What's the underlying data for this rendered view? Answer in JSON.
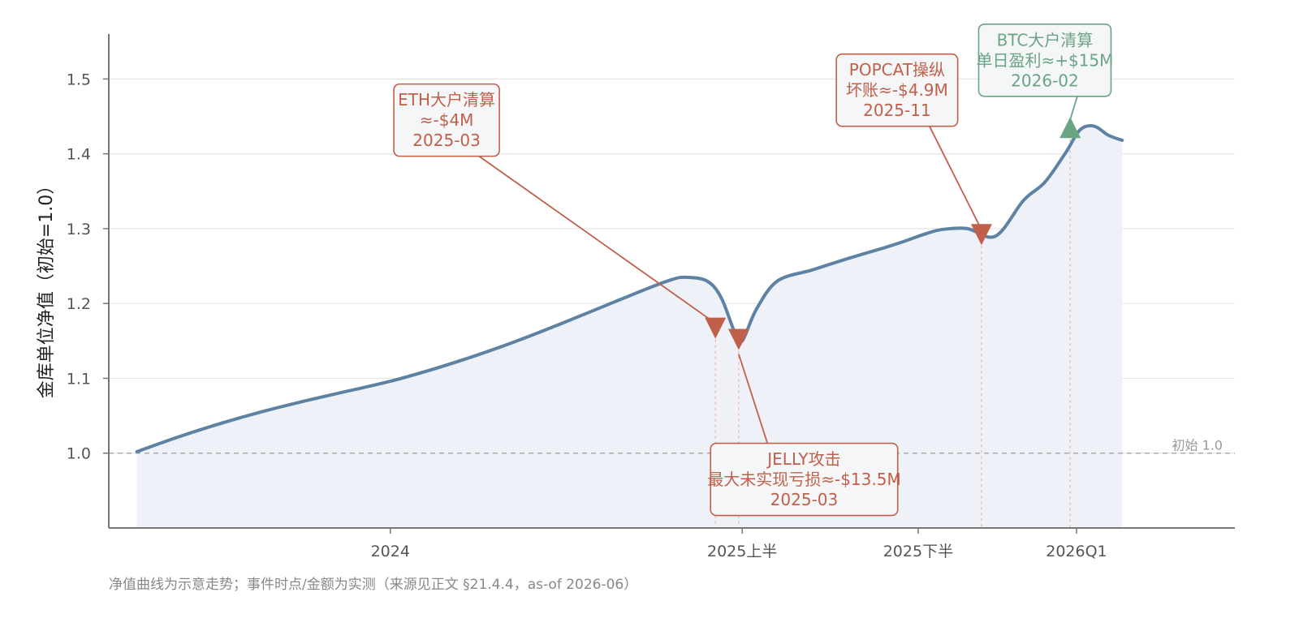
{
  "chart_data": {
    "type": "area",
    "title": "",
    "xlabel": "",
    "ylabel": "金库单位净值（初始=1.0）",
    "ylim": [
      0.9,
      1.56
    ],
    "yticks": [
      1.0,
      1.1,
      1.2,
      1.3,
      1.4,
      1.5
    ],
    "ytick_labels": [
      "1.0",
      "1.1",
      "1.2",
      "1.3",
      "1.4",
      "1.5"
    ],
    "xlim": [
      -0.4,
      1.2
    ],
    "xticks": [
      {
        "label": "2024",
        "x": 0.0
      },
      {
        "label": "2025上半",
        "x": 0.5
      },
      {
        "label": "2025下半",
        "x": 0.75
      },
      {
        "label": "2026Q1",
        "x": 0.975
      }
    ],
    "grid": {
      "y": true,
      "x": false
    },
    "series": [
      {
        "color": "#5e82a4",
        "fill": "#eef2f8",
        "x": [
          -0.36,
          -0.3,
          -0.24,
          -0.18,
          -0.12,
          -0.06,
          0.0,
          0.06,
          0.12,
          0.18,
          0.24,
          0.3,
          0.36,
          0.4,
          0.42,
          0.45,
          0.47,
          0.49,
          0.5,
          0.52,
          0.55,
          0.6,
          0.65,
          0.7,
          0.73,
          0.76,
          0.785,
          0.82,
          0.86,
          0.9,
          0.93,
          0.96,
          0.98,
          1.0,
          1.02,
          1.04
        ],
        "values": [
          1.002,
          1.022,
          1.04,
          1.056,
          1.07,
          1.083,
          1.096,
          1.112,
          1.13,
          1.15,
          1.172,
          1.195,
          1.218,
          1.232,
          1.235,
          1.23,
          1.208,
          1.16,
          1.15,
          1.192,
          1.23,
          1.245,
          1.26,
          1.274,
          1.283,
          1.293,
          1.299,
          1.3,
          1.29,
          1.338,
          1.362,
          1.402,
          1.432,
          1.437,
          1.425,
          1.418
        ]
      }
    ],
    "baseline": {
      "value": 1.0,
      "label": "初始 1.0"
    },
    "events": [
      {
        "x": 0.462,
        "y": 1.167,
        "marker": "down",
        "color": "#c0604a",
        "box_x": 0.08,
        "box_y": 1.445,
        "lines": [
          "ETH大户清算",
          "≈-$4M",
          "2025-03"
        ]
      },
      {
        "x": 0.495,
        "y": 1.152,
        "marker": "down",
        "color": "#c0604a",
        "box_x": 0.588,
        "box_y": 0.965,
        "lines": [
          "JELLY攻击",
          "最大未实现亏损≈-$13.5M",
          "2025-03"
        ]
      },
      {
        "x": 0.84,
        "y": 1.292,
        "marker": "down",
        "color": "#c0604a",
        "box_x": 0.72,
        "box_y": 1.485,
        "lines": [
          "POPCAT操纵",
          "坏账≈-$4.9M",
          "2025-11"
        ]
      },
      {
        "x": 0.966,
        "y": 1.435,
        "marker": "up",
        "color": "#6aa483",
        "box_x": 0.93,
        "box_y": 1.525,
        "lines": [
          "BTC大户清算",
          "单日盈利≈+$15M",
          "2026-02"
        ]
      }
    ],
    "note": "净值曲线为示意走势；事件时点/金额为实测（来源见正文 §21.4.4，as-of 2026-06）"
  }
}
